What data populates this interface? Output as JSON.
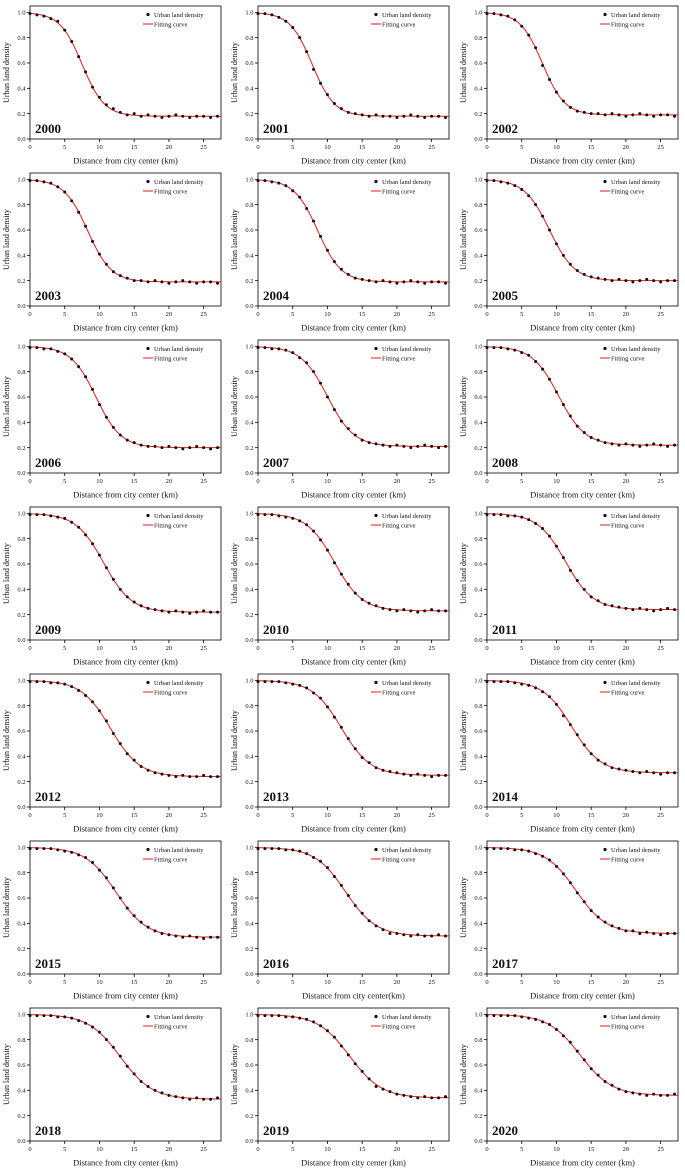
{
  "figure": {
    "ylabel": "Urban land density",
    "legend": [
      "Urban land density",
      "Fitting curve"
    ],
    "colors": {
      "scatter": "#111111",
      "fit": "#e8191c",
      "axis": "#000000"
    },
    "y_ticks": [
      0.0,
      0.2,
      0.4,
      0.6,
      0.8,
      1.0
    ],
    "x_ticks": [
      0,
      5,
      10,
      15,
      20,
      25
    ],
    "x_max": 27.5,
    "y_max": 1.05,
    "x_values": [
      0,
      1,
      2,
      3,
      4,
      5,
      6,
      7,
      8,
      9,
      10,
      11,
      12,
      13,
      14,
      15,
      16,
      17,
      18,
      19,
      20,
      21,
      22,
      23,
      24,
      25,
      26,
      27
    ]
  },
  "chart_data": [
    {
      "type": "scatter+line",
      "year": "2000",
      "xlabel": "Distance from city center (km)",
      "scatter": [
        0.99,
        0.98,
        0.97,
        0.95,
        0.93,
        0.86,
        0.77,
        0.65,
        0.53,
        0.41,
        0.33,
        0.27,
        0.24,
        0.21,
        0.19,
        0.2,
        0.18,
        0.19,
        0.18,
        0.17,
        0.18,
        0.19,
        0.18,
        0.17,
        0.18,
        0.18,
        0.17,
        0.18
      ],
      "fit": {
        "floor": 0.18,
        "midpoint": 7.5,
        "width": 1.6
      }
    },
    {
      "type": "scatter+line",
      "year": "2001",
      "xlabel": "Distance from city center (km)",
      "scatter": [
        0.99,
        0.99,
        0.98,
        0.96,
        0.93,
        0.88,
        0.8,
        0.69,
        0.55,
        0.44,
        0.35,
        0.28,
        0.24,
        0.21,
        0.2,
        0.19,
        0.18,
        0.19,
        0.18,
        0.18,
        0.17,
        0.18,
        0.19,
        0.18,
        0.17,
        0.18,
        0.18,
        0.17
      ],
      "fit": {
        "floor": 0.18,
        "midpoint": 7.8,
        "width": 1.6
      }
    },
    {
      "type": "scatter+line",
      "year": "2002",
      "xlabel": "Distance from city center (km)",
      "scatter": [
        0.99,
        0.99,
        0.98,
        0.97,
        0.94,
        0.89,
        0.82,
        0.72,
        0.58,
        0.47,
        0.37,
        0.3,
        0.25,
        0.22,
        0.21,
        0.2,
        0.2,
        0.19,
        0.2,
        0.19,
        0.18,
        0.19,
        0.2,
        0.19,
        0.18,
        0.19,
        0.19,
        0.18
      ],
      "fit": {
        "floor": 0.19,
        "midpoint": 8.0,
        "width": 1.6
      }
    },
    {
      "type": "scatter+line",
      "year": "2003",
      "xlabel": "Distance from city center (km)",
      "scatter": [
        0.99,
        0.99,
        0.98,
        0.97,
        0.94,
        0.9,
        0.83,
        0.74,
        0.63,
        0.51,
        0.41,
        0.33,
        0.27,
        0.24,
        0.22,
        0.2,
        0.2,
        0.19,
        0.2,
        0.19,
        0.18,
        0.19,
        0.2,
        0.19,
        0.18,
        0.19,
        0.19,
        0.18
      ],
      "fit": {
        "floor": 0.19,
        "midpoint": 8.3,
        "width": 1.7
      }
    },
    {
      "type": "scatter+line",
      "year": "2004",
      "xlabel": "Distance from city center (km)",
      "scatter": [
        0.99,
        0.99,
        0.98,
        0.97,
        0.95,
        0.91,
        0.86,
        0.77,
        0.67,
        0.55,
        0.44,
        0.35,
        0.29,
        0.25,
        0.22,
        0.21,
        0.2,
        0.19,
        0.2,
        0.19,
        0.18,
        0.19,
        0.2,
        0.19,
        0.18,
        0.19,
        0.19,
        0.18
      ],
      "fit": {
        "floor": 0.19,
        "midpoint": 8.6,
        "width": 1.7
      }
    },
    {
      "type": "scatter+line",
      "year": "2005",
      "xlabel": "Distance from city center (km)",
      "scatter": [
        0.99,
        0.99,
        0.98,
        0.97,
        0.95,
        0.92,
        0.87,
        0.8,
        0.71,
        0.6,
        0.49,
        0.4,
        0.33,
        0.28,
        0.25,
        0.23,
        0.22,
        0.21,
        0.2,
        0.21,
        0.2,
        0.19,
        0.2,
        0.21,
        0.2,
        0.19,
        0.2,
        0.2
      ],
      "fit": {
        "floor": 0.2,
        "midpoint": 9.0,
        "width": 1.8
      }
    },
    {
      "type": "scatter+line",
      "year": "2006",
      "xlabel": "Distance from city center (km)",
      "scatter": [
        0.99,
        0.99,
        0.98,
        0.98,
        0.96,
        0.94,
        0.9,
        0.84,
        0.76,
        0.66,
        0.54,
        0.44,
        0.36,
        0.3,
        0.26,
        0.24,
        0.22,
        0.21,
        0.21,
        0.2,
        0.21,
        0.2,
        0.19,
        0.2,
        0.21,
        0.2,
        0.19,
        0.2
      ],
      "fit": {
        "floor": 0.2,
        "midpoint": 9.5,
        "width": 1.8
      }
    },
    {
      "type": "scatter+line",
      "year": "2007",
      "xlabel": "Distance from city center (km)",
      "scatter": [
        0.99,
        0.99,
        0.98,
        0.98,
        0.97,
        0.95,
        0.91,
        0.87,
        0.8,
        0.71,
        0.6,
        0.5,
        0.41,
        0.35,
        0.3,
        0.26,
        0.24,
        0.23,
        0.22,
        0.21,
        0.22,
        0.21,
        0.2,
        0.21,
        0.22,
        0.21,
        0.2,
        0.21
      ],
      "fit": {
        "floor": 0.21,
        "midpoint": 10.0,
        "width": 1.9
      }
    },
    {
      "type": "scatter+line",
      "year": "2008",
      "xlabel": "Distance from city center (km)",
      "scatter": [
        0.99,
        0.99,
        0.99,
        0.98,
        0.97,
        0.95,
        0.93,
        0.88,
        0.82,
        0.74,
        0.64,
        0.54,
        0.45,
        0.37,
        0.32,
        0.28,
        0.26,
        0.24,
        0.23,
        0.22,
        0.23,
        0.22,
        0.21,
        0.22,
        0.23,
        0.22,
        0.21,
        0.22
      ],
      "fit": {
        "floor": 0.22,
        "midpoint": 10.3,
        "width": 1.9
      }
    },
    {
      "type": "scatter+line",
      "year": "2009",
      "xlabel": "Distance from city center (km)",
      "scatter": [
        0.99,
        0.99,
        0.99,
        0.98,
        0.97,
        0.96,
        0.93,
        0.89,
        0.83,
        0.76,
        0.67,
        0.57,
        0.48,
        0.4,
        0.34,
        0.3,
        0.27,
        0.25,
        0.24,
        0.23,
        0.22,
        0.23,
        0.22,
        0.21,
        0.22,
        0.23,
        0.22,
        0.22
      ],
      "fit": {
        "floor": 0.22,
        "midpoint": 10.6,
        "width": 2.0
      }
    },
    {
      "type": "scatter+line",
      "year": "2010",
      "xlabel": "Distance from city center (km)",
      "scatter": [
        0.99,
        0.99,
        0.99,
        0.98,
        0.97,
        0.96,
        0.94,
        0.91,
        0.86,
        0.79,
        0.71,
        0.61,
        0.52,
        0.44,
        0.37,
        0.32,
        0.29,
        0.27,
        0.25,
        0.24,
        0.23,
        0.24,
        0.23,
        0.22,
        0.23,
        0.24,
        0.23,
        0.23
      ],
      "fit": {
        "floor": 0.23,
        "midpoint": 11.0,
        "width": 2.0
      }
    },
    {
      "type": "scatter+line",
      "year": "2011",
      "xlabel": "Distance from city center (km)",
      "scatter": [
        0.99,
        0.99,
        0.99,
        0.98,
        0.98,
        0.97,
        0.95,
        0.92,
        0.88,
        0.82,
        0.74,
        0.65,
        0.55,
        0.47,
        0.4,
        0.34,
        0.31,
        0.28,
        0.27,
        0.26,
        0.25,
        0.24,
        0.25,
        0.24,
        0.23,
        0.24,
        0.25,
        0.24
      ],
      "fit": {
        "floor": 0.24,
        "midpoint": 11.3,
        "width": 2.0
      }
    },
    {
      "type": "scatter+line",
      "year": "2012",
      "xlabel": "Distance from city center (km)",
      "scatter": [
        0.99,
        0.99,
        0.99,
        0.98,
        0.98,
        0.97,
        0.95,
        0.92,
        0.88,
        0.83,
        0.76,
        0.68,
        0.58,
        0.5,
        0.42,
        0.37,
        0.32,
        0.29,
        0.27,
        0.26,
        0.25,
        0.24,
        0.25,
        0.24,
        0.24,
        0.25,
        0.24,
        0.24
      ],
      "fit": {
        "floor": 0.24,
        "midpoint": 11.6,
        "width": 2.1
      }
    },
    {
      "type": "scatter+line",
      "year": "2013",
      "xlabel": "Distance from city center (km)",
      "scatter": [
        0.99,
        0.99,
        0.99,
        0.99,
        0.98,
        0.97,
        0.96,
        0.94,
        0.9,
        0.86,
        0.79,
        0.71,
        0.63,
        0.54,
        0.46,
        0.39,
        0.35,
        0.31,
        0.29,
        0.28,
        0.27,
        0.26,
        0.25,
        0.26,
        0.25,
        0.24,
        0.25,
        0.25
      ],
      "fit": {
        "floor": 0.25,
        "midpoint": 12.0,
        "width": 2.1
      }
    },
    {
      "type": "scatter+line",
      "year": "2014",
      "xlabel": "Distance from city center (km)",
      "scatter": [
        0.99,
        0.99,
        0.99,
        0.99,
        0.98,
        0.97,
        0.96,
        0.94,
        0.91,
        0.87,
        0.81,
        0.72,
        0.65,
        0.57,
        0.49,
        0.42,
        0.37,
        0.34,
        0.31,
        0.3,
        0.29,
        0.28,
        0.27,
        0.28,
        0.27,
        0.26,
        0.27,
        0.27
      ],
      "fit": {
        "floor": 0.27,
        "midpoint": 12.2,
        "width": 2.1
      }
    },
    {
      "type": "scatter+line",
      "year": "2015",
      "xlabel": "Distance from city center (km)",
      "scatter": [
        0.99,
        0.99,
        0.99,
        0.99,
        0.98,
        0.97,
        0.96,
        0.94,
        0.92,
        0.88,
        0.82,
        0.76,
        0.68,
        0.6,
        0.52,
        0.46,
        0.41,
        0.37,
        0.34,
        0.32,
        0.31,
        0.3,
        0.29,
        0.3,
        0.29,
        0.28,
        0.29,
        0.29
      ],
      "fit": {
        "floor": 0.29,
        "midpoint": 12.4,
        "width": 2.2
      }
    },
    {
      "type": "scatter+line",
      "year": "2016",
      "xlabel": "Distance from city center(km)",
      "scatter": [
        0.99,
        0.99,
        0.99,
        0.99,
        0.98,
        0.98,
        0.97,
        0.95,
        0.92,
        0.89,
        0.84,
        0.77,
        0.7,
        0.62,
        0.54,
        0.48,
        0.42,
        0.38,
        0.35,
        0.32,
        0.32,
        0.31,
        0.3,
        0.31,
        0.3,
        0.3,
        0.31,
        0.3
      ],
      "fit": {
        "floor": 0.3,
        "midpoint": 12.6,
        "width": 2.2
      }
    },
    {
      "type": "scatter+line",
      "year": "2017",
      "xlabel": "Distance from city center (km)",
      "scatter": [
        0.99,
        0.99,
        0.99,
        0.99,
        0.98,
        0.98,
        0.97,
        0.95,
        0.93,
        0.9,
        0.85,
        0.79,
        0.72,
        0.64,
        0.57,
        0.5,
        0.45,
        0.41,
        0.38,
        0.36,
        0.34,
        0.34,
        0.32,
        0.33,
        0.32,
        0.31,
        0.32,
        0.32
      ],
      "fit": {
        "floor": 0.32,
        "midpoint": 12.8,
        "width": 2.2
      }
    },
    {
      "type": "scatter+line",
      "year": "2018",
      "xlabel": "Distance from city center (km)",
      "scatter": [
        0.99,
        0.99,
        0.99,
        0.99,
        0.98,
        0.98,
        0.97,
        0.95,
        0.93,
        0.9,
        0.86,
        0.8,
        0.74,
        0.67,
        0.59,
        0.53,
        0.47,
        0.43,
        0.4,
        0.38,
        0.36,
        0.35,
        0.34,
        0.33,
        0.34,
        0.33,
        0.33,
        0.34
      ],
      "fit": {
        "floor": 0.33,
        "midpoint": 13.0,
        "width": 2.3
      }
    },
    {
      "type": "scatter+line",
      "year": "2019",
      "xlabel": "Distance from city center (km)",
      "scatter": [
        0.99,
        0.99,
        0.99,
        0.99,
        0.98,
        0.98,
        0.97,
        0.96,
        0.94,
        0.91,
        0.87,
        0.82,
        0.75,
        0.68,
        0.61,
        0.55,
        0.49,
        0.43,
        0.41,
        0.39,
        0.37,
        0.36,
        0.35,
        0.34,
        0.35,
        0.34,
        0.34,
        0.35
      ],
      "fit": {
        "floor": 0.34,
        "midpoint": 13.2,
        "width": 2.3
      }
    },
    {
      "type": "scatter+line",
      "year": "2020",
      "xlabel": "Distance from city center (km)",
      "scatter": [
        0.99,
        0.99,
        0.99,
        0.99,
        0.99,
        0.98,
        0.97,
        0.96,
        0.94,
        0.92,
        0.88,
        0.83,
        0.78,
        0.71,
        0.64,
        0.57,
        0.52,
        0.47,
        0.44,
        0.41,
        0.39,
        0.38,
        0.37,
        0.36,
        0.37,
        0.36,
        0.36,
        0.37
      ],
      "fit": {
        "floor": 0.36,
        "midpoint": 13.4,
        "width": 2.3
      }
    }
  ]
}
